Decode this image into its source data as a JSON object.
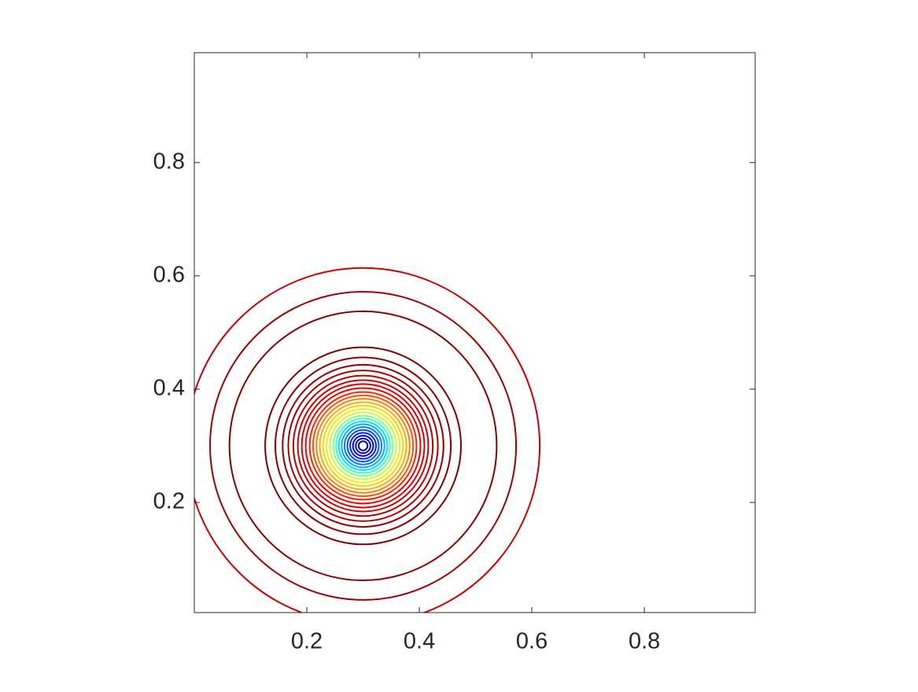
{
  "chart_data": {
    "type": "contour",
    "center": [
      0.3,
      0.3
    ],
    "contours": [
      {
        "radius": 0.314,
        "color": "#cc0000"
      },
      {
        "radius": 0.272,
        "color": "#a00000"
      },
      {
        "radius": 0.2375,
        "color": "#8b0000"
      },
      {
        "radius": 0.174,
        "color": "#800000"
      },
      {
        "radius": 0.156,
        "color": "#8b0000"
      },
      {
        "radius": 0.143,
        "color": "#990000"
      },
      {
        "radius": 0.133,
        "color": "#aa0000"
      },
      {
        "radius": 0.124,
        "color": "#bb0000"
      },
      {
        "radius": 0.116,
        "color": "#cc0000"
      },
      {
        "radius": 0.109,
        "color": "#dd0000"
      },
      {
        "radius": 0.102,
        "color": "#ee0000"
      },
      {
        "radius": 0.095,
        "color": "#ff2000"
      },
      {
        "radius": 0.089,
        "color": "#ff5000"
      },
      {
        "radius": 0.083,
        "color": "#ff8000"
      },
      {
        "radius": 0.077,
        "color": "#ffaa00"
      },
      {
        "radius": 0.071,
        "color": "#ffd000"
      },
      {
        "radius": 0.065,
        "color": "#f0f000"
      },
      {
        "radius": 0.059,
        "color": "#c0ff40"
      },
      {
        "radius": 0.053,
        "color": "#80ff80"
      },
      {
        "radius": 0.048,
        "color": "#40ffc0"
      },
      {
        "radius": 0.043,
        "color": "#00e0ff"
      },
      {
        "radius": 0.038,
        "color": "#00b0ff"
      },
      {
        "radius": 0.033,
        "color": "#0080ff"
      },
      {
        "radius": 0.028,
        "color": "#0050ff"
      },
      {
        "radius": 0.023,
        "color": "#0020ff"
      },
      {
        "radius": 0.018,
        "color": "#0000ee"
      },
      {
        "radius": 0.013,
        "color": "#0000c0"
      },
      {
        "radius": 0.008,
        "color": "#00008f"
      }
    ],
    "xlim": [
      0.0,
      0.997
    ],
    "ylim": [
      0.0056,
      0.994
    ],
    "xticks": [
      0.2,
      0.4,
      0.6,
      0.8
    ],
    "yticks": [
      0.2,
      0.4,
      0.6,
      0.8
    ]
  }
}
